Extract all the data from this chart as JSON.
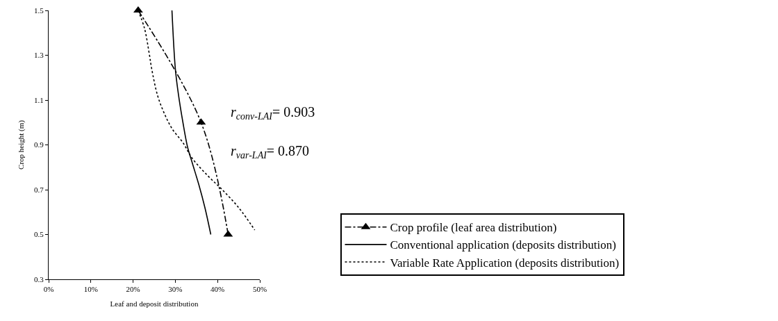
{
  "chart_data": {
    "type": "line",
    "xlabel": "Leaf and deposit distribution",
    "ylabel": "Crop height (m)",
    "xlim": [
      0,
      50
    ],
    "xticks": [
      {
        "value": 0,
        "label": "0%"
      },
      {
        "value": 10,
        "label": "10%"
      },
      {
        "value": 20,
        "label": "20%"
      },
      {
        "value": 30,
        "label": "30%"
      },
      {
        "value": 40,
        "label": "40%"
      },
      {
        "value": 50,
        "label": "50%"
      }
    ],
    "ylim": [
      0.3,
      1.5
    ],
    "yticks": [
      0.3,
      0.5,
      0.7,
      0.9,
      1.1,
      1.3,
      1.5
    ],
    "grid": false,
    "legend": "bottom right",
    "annotations": [
      "r$_{conv-LAI}$= 0.903",
      "r$_{var-LAI}$= 0.870"
    ],
    "series": [
      {
        "name": "Crop profile (leaf area distribution)",
        "color": "#000000",
        "marker": "triangle",
        "line_style": "dashed",
        "x": [
          21.2,
          36.1,
          42.5
        ],
        "values": [
          1.5,
          1.0,
          0.5
        ]
      },
      {
        "name": "Conventional application (deposits distribution)",
        "color": "#000000",
        "marker": "none",
        "line_style": "solid",
        "x": [
          29.2,
          30.0,
          30.7,
          31.8,
          32.9,
          34.0,
          35.6,
          37.0,
          38.4
        ],
        "values": [
          1.5,
          1.24,
          1.13,
          1.0,
          0.89,
          0.82,
          0.72,
          0.62,
          0.5
        ]
      },
      {
        "name": "Variable Rate Application (deposits distribution)",
        "color": "#000000",
        "marker": "none",
        "line_style": "dotted",
        "x": [
          21.2,
          22.7,
          23.8,
          24.4,
          25.8,
          27.4,
          29.3,
          31.8,
          34.0,
          37.8,
          41.1,
          45.0,
          48.8
        ],
        "values": [
          1.5,
          1.42,
          1.31,
          1.24,
          1.12,
          1.04,
          0.97,
          0.91,
          0.84,
          0.76,
          0.7,
          0.62,
          0.52
        ]
      }
    ]
  }
}
